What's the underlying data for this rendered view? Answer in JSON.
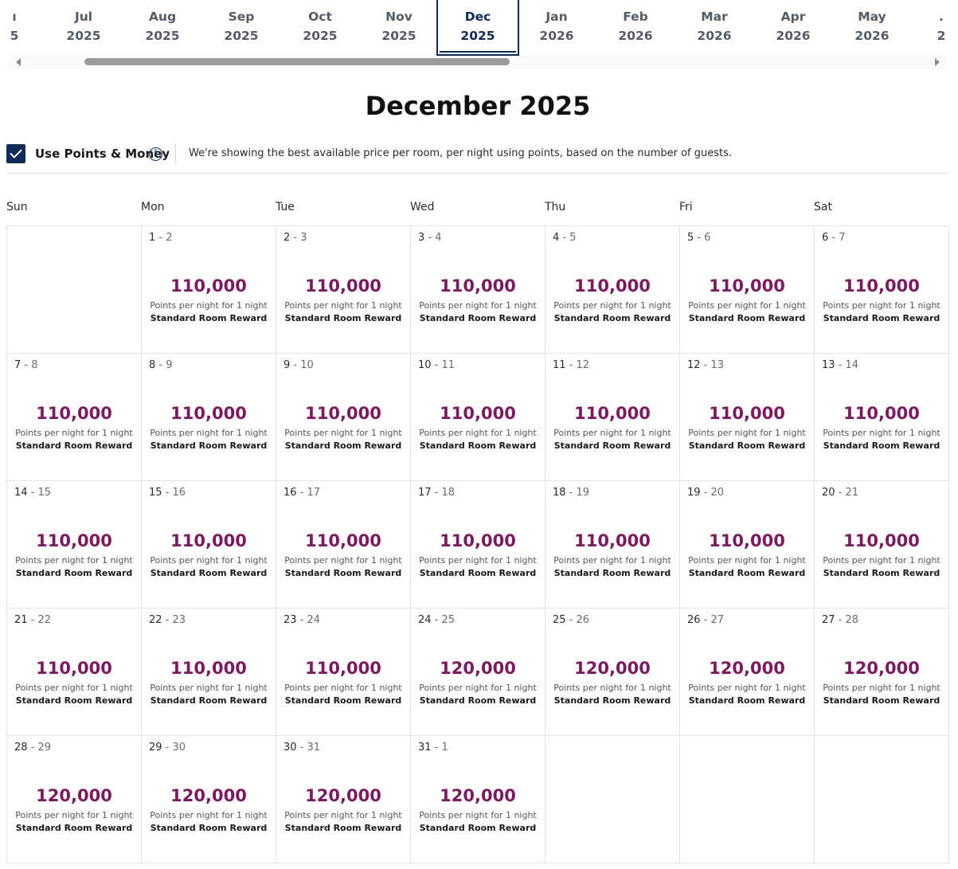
{
  "months": [
    {
      "month": "ı",
      "year": "5",
      "partial": true
    },
    {
      "month": "Jul",
      "year": "2025"
    },
    {
      "month": "Aug",
      "year": "2025"
    },
    {
      "month": "Sep",
      "year": "2025"
    },
    {
      "month": "Oct",
      "year": "2025"
    },
    {
      "month": "Nov",
      "year": "2025"
    },
    {
      "month": "Dec",
      "year": "2025",
      "active": true
    },
    {
      "month": "Jan",
      "year": "2026"
    },
    {
      "month": "Feb",
      "year": "2026"
    },
    {
      "month": "Mar",
      "year": "2026"
    },
    {
      "month": "Apr",
      "year": "2026"
    },
    {
      "month": "May",
      "year": "2026"
    },
    {
      "month": ".",
      "year": "2",
      "partial": true
    }
  ],
  "title": "December 2025",
  "points_toggle": {
    "label": "Use Points & Money",
    "checked": true,
    "info_glyph": "i",
    "description": "We're showing the best available price per room, per night using points, based on the number of guests."
  },
  "weekdays": [
    "Sun",
    "Mon",
    "Tue",
    "Wed",
    "Thu",
    "Fri",
    "Sat"
  ],
  "cell_labels": {
    "subtitle": "Points per night for 1 night",
    "room_type": "Standard Room Reward"
  },
  "days": [
    {
      "start": "1",
      "end": "2",
      "points": "110,000"
    },
    {
      "start": "2",
      "end": "3",
      "points": "110,000"
    },
    {
      "start": "3",
      "end": "4",
      "points": "110,000"
    },
    {
      "start": "4",
      "end": "5",
      "points": "110,000"
    },
    {
      "start": "5",
      "end": "6",
      "points": "110,000"
    },
    {
      "start": "6",
      "end": "7",
      "points": "110,000"
    },
    {
      "start": "7",
      "end": "8",
      "points": "110,000"
    },
    {
      "start": "8",
      "end": "9",
      "points": "110,000"
    },
    {
      "start": "9",
      "end": "10",
      "points": "110,000"
    },
    {
      "start": "10",
      "end": "11",
      "points": "110,000"
    },
    {
      "start": "11",
      "end": "12",
      "points": "110,000"
    },
    {
      "start": "12",
      "end": "13",
      "points": "110,000"
    },
    {
      "start": "13",
      "end": "14",
      "points": "110,000"
    },
    {
      "start": "14",
      "end": "15",
      "points": "110,000"
    },
    {
      "start": "15",
      "end": "16",
      "points": "110,000"
    },
    {
      "start": "16",
      "end": "17",
      "points": "110,000"
    },
    {
      "start": "17",
      "end": "18",
      "points": "110,000"
    },
    {
      "start": "18",
      "end": "19",
      "points": "110,000"
    },
    {
      "start": "19",
      "end": "20",
      "points": "110,000"
    },
    {
      "start": "20",
      "end": "21",
      "points": "110,000"
    },
    {
      "start": "21",
      "end": "22",
      "points": "110,000"
    },
    {
      "start": "22",
      "end": "23",
      "points": "110,000"
    },
    {
      "start": "23",
      "end": "24",
      "points": "110,000"
    },
    {
      "start": "24",
      "end": "25",
      "points": "120,000"
    },
    {
      "start": "25",
      "end": "26",
      "points": "120,000"
    },
    {
      "start": "26",
      "end": "27",
      "points": "120,000"
    },
    {
      "start": "27",
      "end": "28",
      "points": "120,000"
    },
    {
      "start": "28",
      "end": "29",
      "points": "120,000"
    },
    {
      "start": "29",
      "end": "30",
      "points": "120,000"
    },
    {
      "start": "30",
      "end": "31",
      "points": "120,000"
    },
    {
      "start": "31",
      "end": "1",
      "points": "120,000"
    }
  ],
  "first_weekday_index": 1,
  "colors": {
    "brand_navy": "#0f2b57",
    "points_purple": "#7b1a5e"
  }
}
